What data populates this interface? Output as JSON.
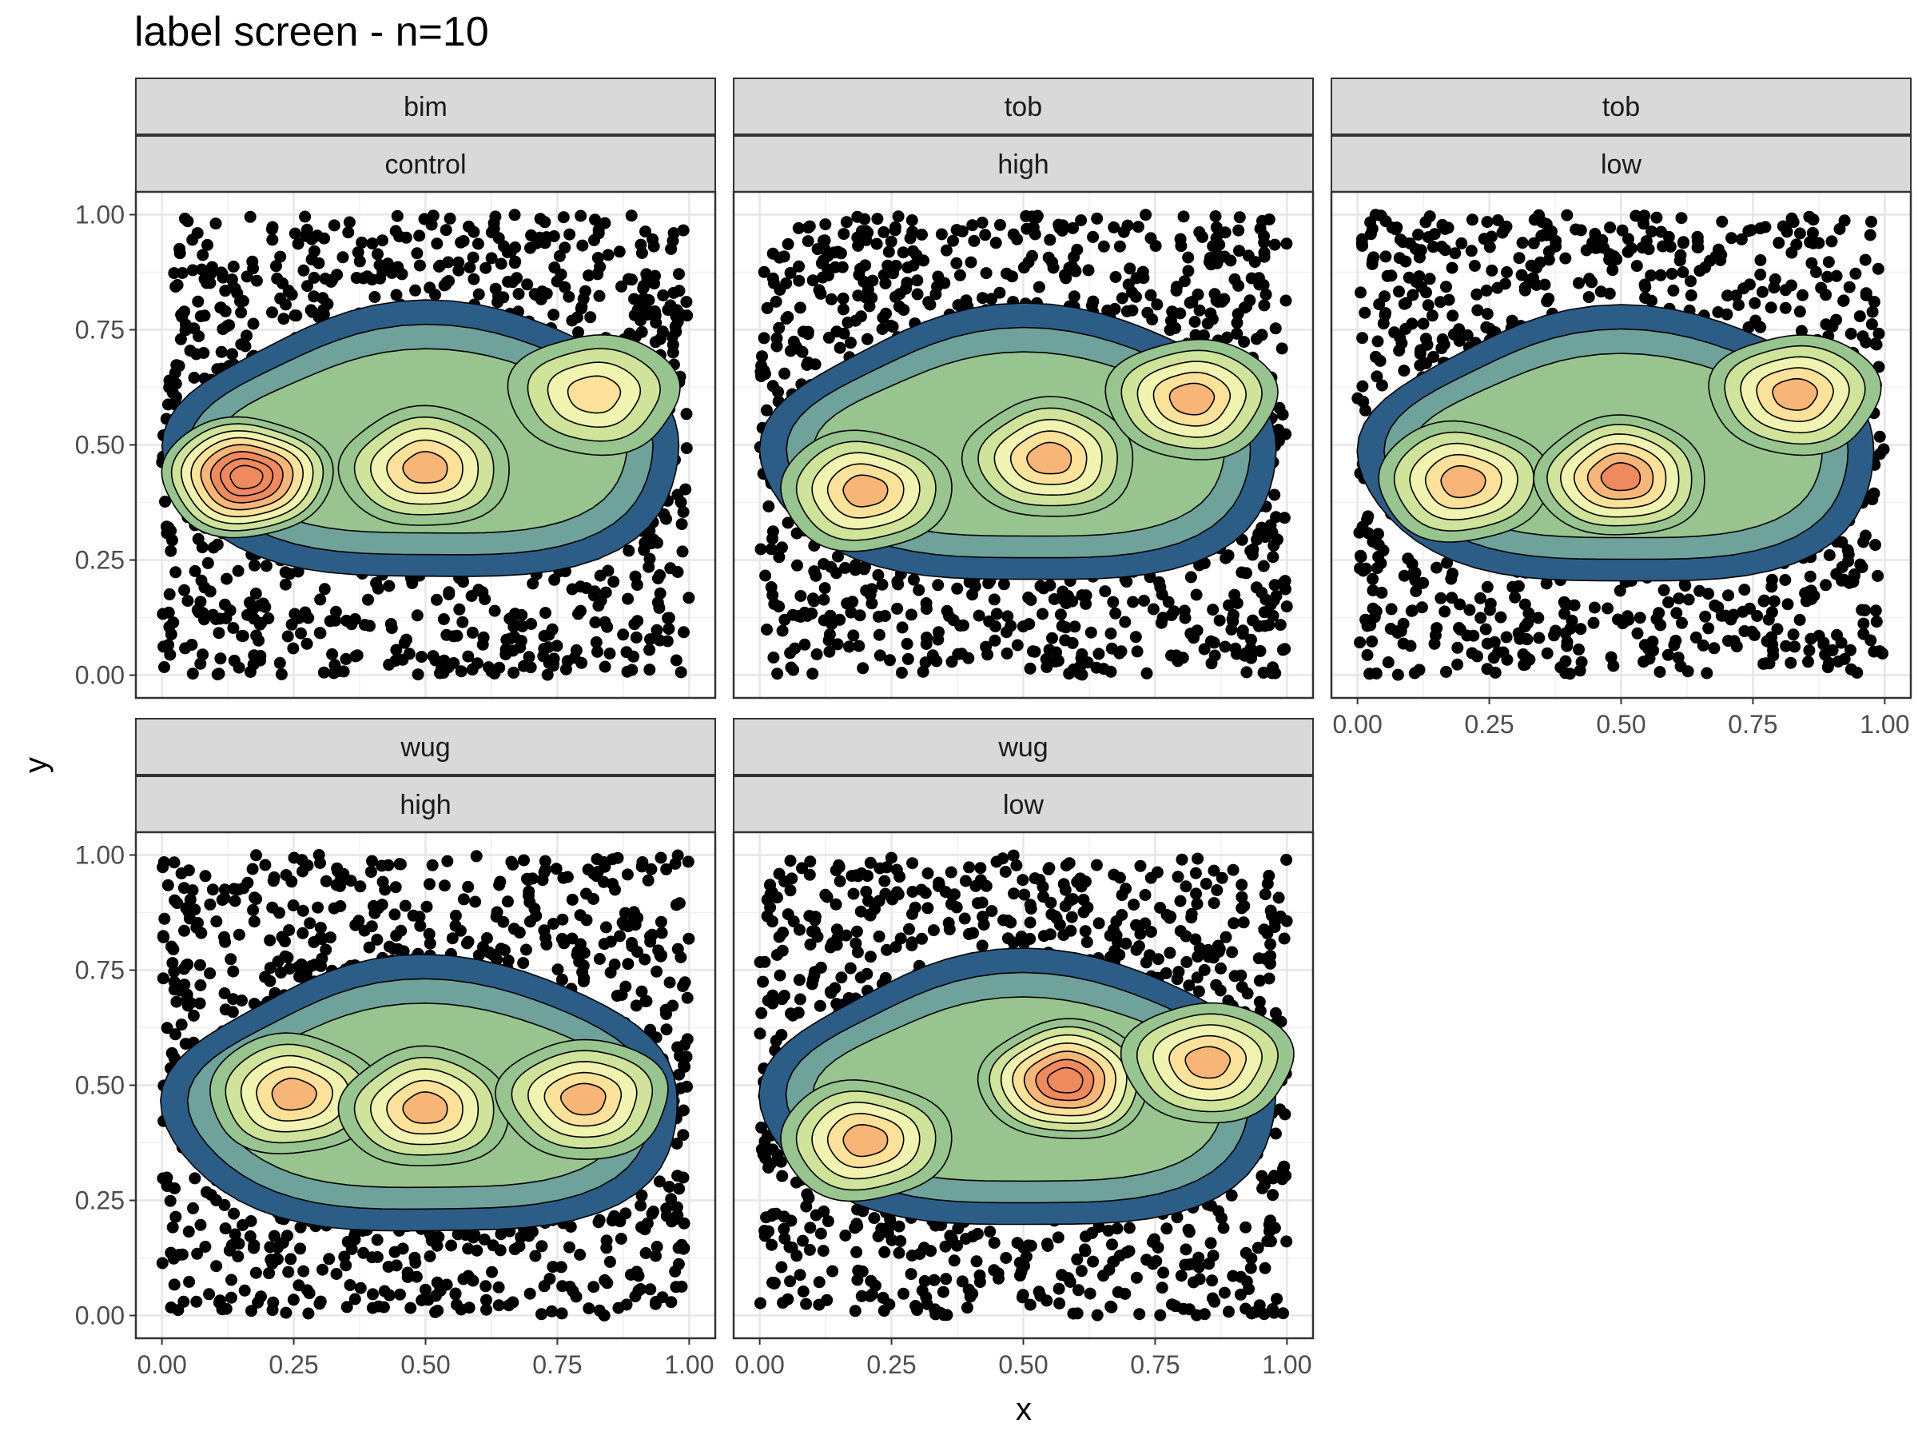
{
  "chart_data": {
    "type": "density",
    "title": "label screen - n=10",
    "xlabel": "x",
    "ylabel": "y",
    "xlim": [
      0,
      1
    ],
    "ylim": [
      0,
      1
    ],
    "x_ticks": [
      "0.00",
      "0.25",
      "0.50",
      "0.75",
      "1.00"
    ],
    "y_ticks": [
      "0.00",
      "0.25",
      "0.50",
      "0.75",
      "1.00"
    ],
    "grid": true,
    "layers": [
      "scatter points",
      "filled 2D density contours"
    ],
    "palette": [
      "#2c5d87",
      "#5b94b3",
      "#6fa29a",
      "#98c58f",
      "#cfe39a",
      "#f0f4b0",
      "#fbe19a",
      "#f7b678",
      "#ef8a5e"
    ],
    "panels": [
      {
        "strip_top": "bim",
        "strip_bottom": "control",
        "density_peaks": [
          {
            "x": 0.16,
            "y": 0.43,
            "level": 8
          },
          {
            "x": 0.5,
            "y": 0.45,
            "level": 5
          },
          {
            "x": 0.82,
            "y": 0.61,
            "level": 4
          }
        ]
      },
      {
        "strip_top": "tob",
        "strip_bottom": "high",
        "density_peaks": [
          {
            "x": 0.2,
            "y": 0.4,
            "level": 5
          },
          {
            "x": 0.55,
            "y": 0.47,
            "level": 5
          },
          {
            "x": 0.82,
            "y": 0.6,
            "level": 5
          }
        ]
      },
      {
        "strip_top": "tob",
        "strip_bottom": "low",
        "density_peaks": [
          {
            "x": 0.2,
            "y": 0.42,
            "level": 5
          },
          {
            "x": 0.5,
            "y": 0.43,
            "level": 6
          },
          {
            "x": 0.83,
            "y": 0.61,
            "level": 5
          }
        ]
      },
      {
        "strip_top": "wug",
        "strip_bottom": "high",
        "density_peaks": [
          {
            "x": 0.25,
            "y": 0.48,
            "level": 5
          },
          {
            "x": 0.5,
            "y": 0.45,
            "level": 5
          },
          {
            "x": 0.8,
            "y": 0.47,
            "level": 5
          }
        ]
      },
      {
        "strip_top": "wug",
        "strip_bottom": "low",
        "density_peaks": [
          {
            "x": 0.2,
            "y": 0.38,
            "level": 5
          },
          {
            "x": 0.58,
            "y": 0.51,
            "level": 7
          },
          {
            "x": 0.85,
            "y": 0.55,
            "level": 5
          }
        ]
      }
    ]
  }
}
